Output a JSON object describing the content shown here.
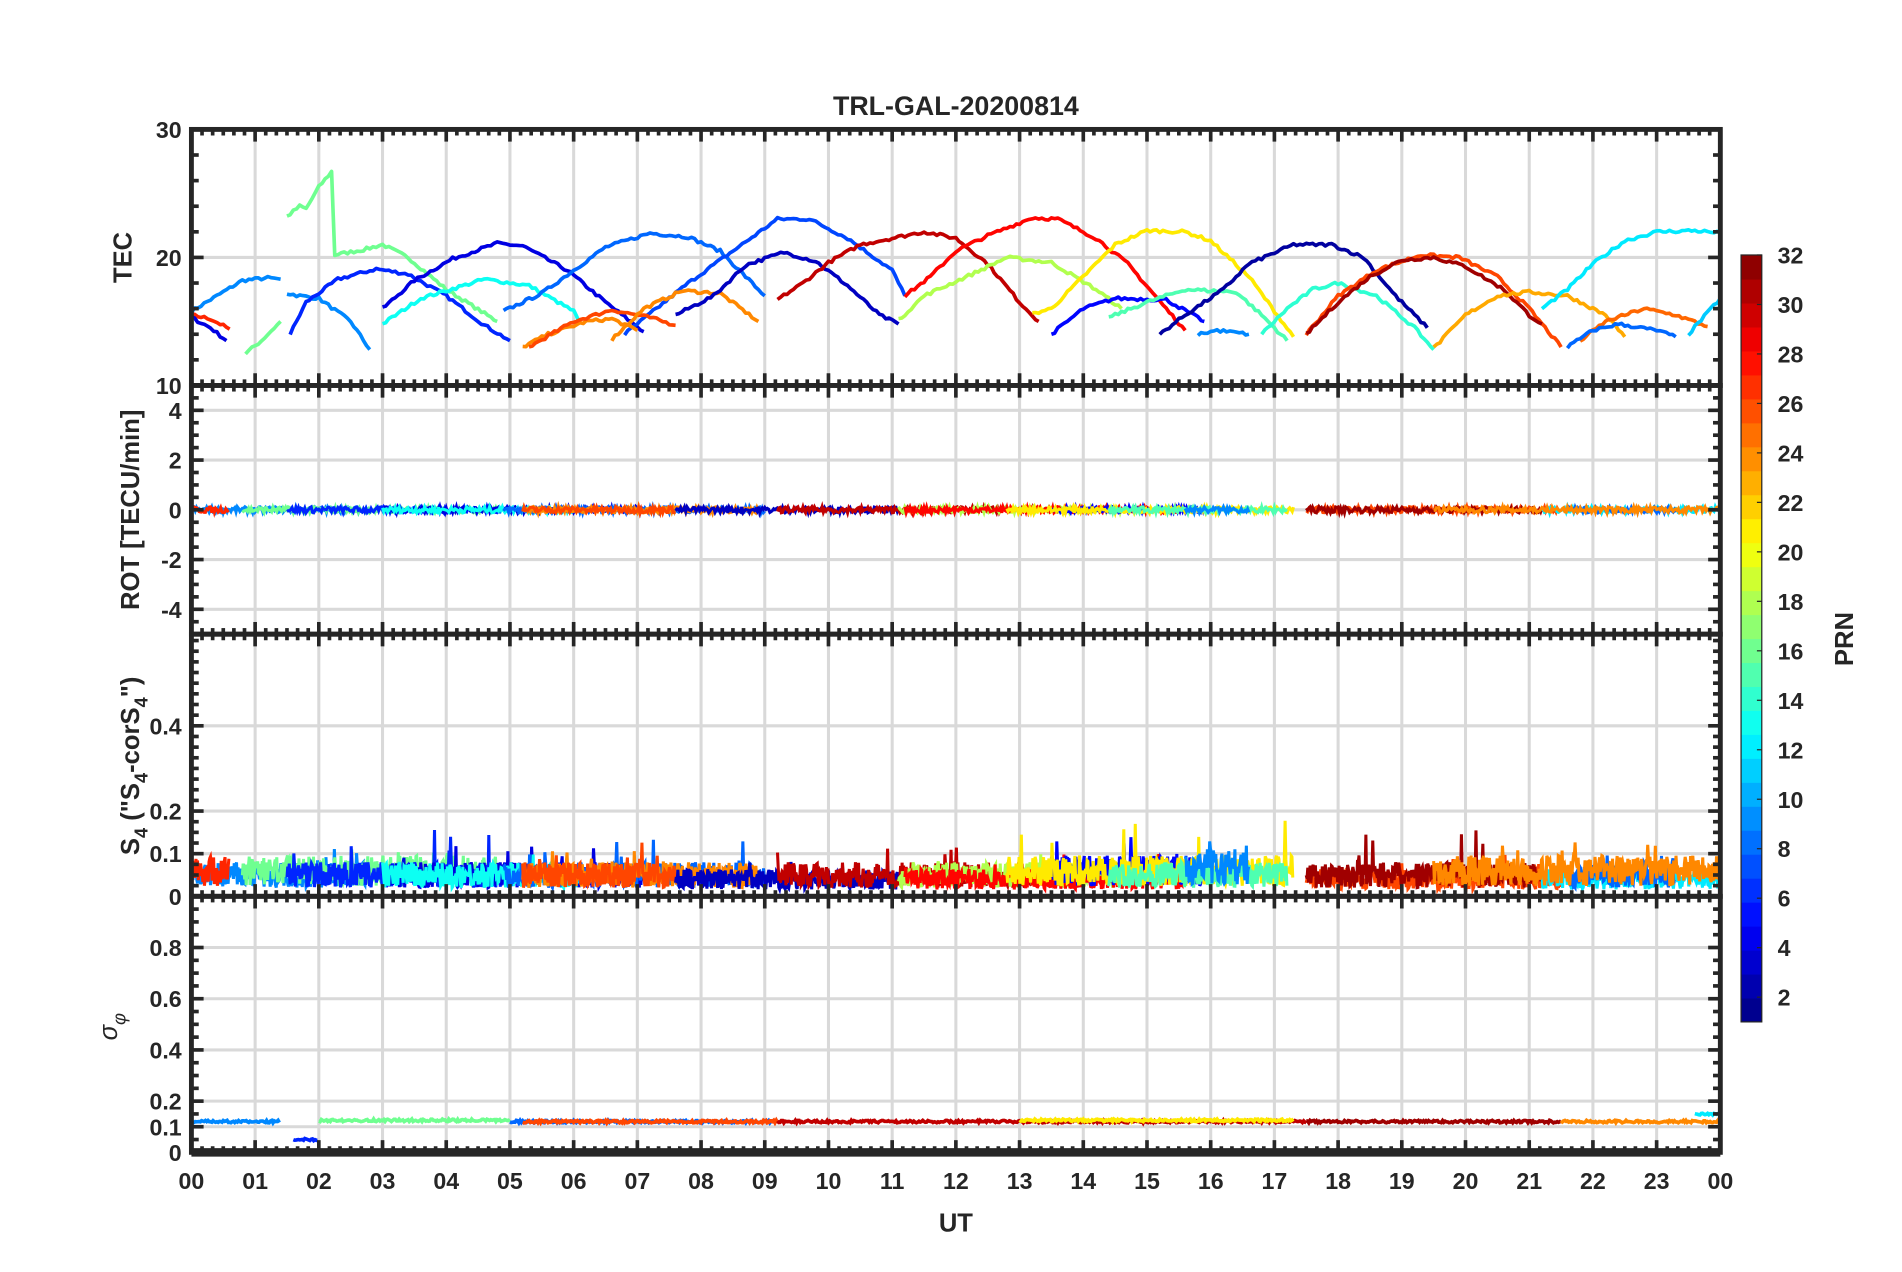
{
  "chart_data": {
    "type": "line",
    "title": "TRL-GAL-20200814",
    "xlabel": "UT",
    "xlim": [
      0,
      24
    ],
    "x_tick_labels": [
      "00",
      "01",
      "02",
      "03",
      "04",
      "05",
      "06",
      "07",
      "08",
      "09",
      "10",
      "11",
      "12",
      "13",
      "14",
      "15",
      "16",
      "17",
      "18",
      "19",
      "20",
      "21",
      "22",
      "23",
      "00"
    ],
    "grid": true,
    "colorbar": {
      "label": "PRN",
      "range": [
        1,
        32
      ],
      "levels": 32,
      "colormap": "jet",
      "location": "right",
      "ticks": [
        2,
        4,
        6,
        8,
        10,
        12,
        14,
        16,
        18,
        20,
        22,
        24,
        26,
        28,
        30,
        32
      ]
    },
    "panels": [
      {
        "id": "tec",
        "ylabel": "TEC",
        "ylim": [
          10,
          30
        ],
        "yticks": [
          10,
          20,
          30
        ],
        "yminor": 2
      },
      {
        "id": "rot",
        "ylabel": "ROT [TECU/min]",
        "ylim": [
          -5,
          5
        ],
        "yticks": [
          -4,
          -2,
          0,
          2,
          4
        ],
        "yminor": 0.5
      },
      {
        "id": "s4",
        "ylabel_main": "S",
        "ylabel_sub": "4",
        "ylabel_mid": " (\"S",
        "ylabel_sub2": "4",
        "ylabel_mid2": "-corS",
        "ylabel_sub3": "4",
        "ylabel_end": "\")",
        "ylim": [
          0,
          0.615
        ],
        "yticks": [
          0,
          0.1,
          0.2,
          0.4
        ],
        "yminor": 0.025
      },
      {
        "id": "sigma",
        "ylabel_main": "σ",
        "ylabel_sub": "φ",
        "ylim": [
          0,
          1
        ],
        "yticks": [
          0,
          0.1,
          0.2,
          0.4,
          0.6,
          0.8
        ],
        "yminor": 0.05
      }
    ],
    "tec_arcs": [
      {
        "prn": 9,
        "points": [
          [
            0,
            15.8
          ],
          [
            0.4,
            17
          ],
          [
            0.8,
            18.2
          ],
          [
            1.2,
            18.4
          ],
          [
            1.4,
            18.3
          ]
        ]
      },
      {
        "prn": 27,
        "points": [
          [
            0,
            15.5
          ],
          [
            0.3,
            15.2
          ],
          [
            0.6,
            14.4
          ]
        ]
      },
      {
        "prn": 4,
        "points": [
          [
            0,
            15.3
          ],
          [
            0.3,
            14.5
          ],
          [
            0.55,
            13.5
          ]
        ]
      },
      {
        "prn": 16,
        "points": [
          [
            0.85,
            12.5
          ],
          [
            1.1,
            13.5
          ],
          [
            1.4,
            15
          ]
        ]
      },
      {
        "prn": 16,
        "points": [
          [
            1.5,
            23.2
          ],
          [
            1.6,
            23.6
          ],
          [
            1.7,
            24
          ],
          [
            1.8,
            23.8
          ],
          [
            2,
            25.5
          ],
          [
            2.2,
            26.7
          ],
          [
            2.25,
            20.2
          ],
          [
            2.7,
            20.6
          ],
          [
            3,
            21
          ],
          [
            3.4,
            20
          ],
          [
            4,
            17.5
          ],
          [
            4.8,
            15
          ]
        ]
      },
      {
        "prn": 9,
        "points": [
          [
            1.5,
            17.2
          ],
          [
            1.7,
            17
          ],
          [
            2.0,
            16.8
          ],
          [
            2.5,
            15
          ],
          [
            2.8,
            12.8
          ]
        ]
      },
      {
        "prn": 6,
        "points": [
          [
            1.55,
            14
          ],
          [
            1.8,
            16.5
          ],
          [
            2.3,
            18.3
          ],
          [
            2.9,
            19.1
          ],
          [
            3.4,
            18.7
          ],
          [
            4.0,
            17
          ],
          [
            4.6,
            14.7
          ],
          [
            5.0,
            13.5
          ]
        ]
      },
      {
        "prn": 4,
        "points": [
          [
            3.0,
            16
          ],
          [
            3.5,
            18.2
          ],
          [
            4.1,
            19.9
          ],
          [
            4.8,
            21.1
          ],
          [
            5.2,
            20.9
          ],
          [
            5.9,
            19
          ],
          [
            6.5,
            16.5
          ],
          [
            7.1,
            14.2
          ]
        ]
      },
      {
        "prn": 13,
        "points": [
          [
            3.0,
            14.8
          ],
          [
            3.6,
            16.8
          ],
          [
            4.6,
            18.3
          ],
          [
            5.3,
            17.8
          ],
          [
            6.0,
            15.8
          ],
          [
            6.1,
            14.8
          ]
        ]
      },
      {
        "prn": 8,
        "points": [
          [
            4.9,
            15.8
          ],
          [
            5.5,
            17.2
          ],
          [
            6,
            19
          ],
          [
            6.5,
            20.8
          ],
          [
            7.2,
            21.9
          ],
          [
            7.8,
            21.6
          ],
          [
            8.3,
            20.5
          ],
          [
            8.7,
            18.5
          ],
          [
            9.0,
            17
          ]
        ]
      },
      {
        "prn": 7,
        "points": [
          [
            6.8,
            14
          ],
          [
            7.3,
            16
          ],
          [
            7.8,
            18
          ],
          [
            8.5,
            20.5
          ],
          [
            9.2,
            23
          ],
          [
            9.7,
            23
          ],
          [
            10.3,
            21.5
          ],
          [
            11.0,
            19
          ],
          [
            11.2,
            17
          ]
        ]
      },
      {
        "prn": 24,
        "points": [
          [
            5.2,
            13
          ],
          [
            5.6,
            14
          ],
          [
            6.2,
            15
          ],
          [
            6.6,
            15.2
          ],
          [
            7.0,
            14.3
          ]
        ]
      },
      {
        "prn": 26,
        "points": [
          [
            5.3,
            13
          ],
          [
            6,
            15
          ],
          [
            6.6,
            15.9
          ],
          [
            7.2,
            15.3
          ],
          [
            7.6,
            14.7
          ]
        ]
      },
      {
        "prn": 24,
        "points": [
          [
            6.6,
            13.6
          ],
          [
            7.1,
            16
          ],
          [
            7.7,
            17.4
          ],
          [
            8.3,
            17.2
          ],
          [
            8.9,
            15
          ]
        ]
      },
      {
        "prn": 3,
        "points": [
          [
            7.6,
            15.5
          ],
          [
            8.2,
            17
          ],
          [
            8.7,
            19.4
          ],
          [
            9.3,
            20.4
          ],
          [
            9.8,
            19.7
          ],
          [
            10.3,
            17.8
          ],
          [
            10.8,
            15.5
          ],
          [
            11.1,
            14.8
          ]
        ]
      },
      {
        "prn": 30,
        "points": [
          [
            9.2,
            16.7
          ],
          [
            9.6,
            18
          ],
          [
            10,
            19.6
          ],
          [
            10.5,
            21
          ],
          [
            11.0,
            21.5
          ],
          [
            11.5,
            22
          ],
          [
            12,
            21.5
          ],
          [
            12.5,
            19.5
          ],
          [
            13.0,
            16.5
          ],
          [
            13.3,
            15
          ]
        ]
      },
      {
        "prn": 28,
        "points": [
          [
            11.2,
            17
          ],
          [
            11.6,
            18.5
          ],
          [
            12,
            20.5
          ],
          [
            12.5,
            21.7
          ],
          [
            13.2,
            23.1
          ],
          [
            13.6,
            23
          ],
          [
            14.2,
            21.5
          ],
          [
            14.7,
            19.5
          ],
          [
            15.3,
            16
          ],
          [
            15.6,
            14.3
          ]
        ]
      },
      {
        "prn": 18,
        "points": [
          [
            11.1,
            15.1
          ],
          [
            11.5,
            17
          ],
          [
            12.3,
            18.8
          ],
          [
            12.8,
            20
          ],
          [
            13.5,
            19.6
          ],
          [
            14.2,
            17.5
          ],
          [
            14.6,
            16
          ]
        ]
      },
      {
        "prn": 21,
        "points": [
          [
            13.2,
            15.6
          ],
          [
            13.5,
            16
          ],
          [
            14,
            18.5
          ],
          [
            14.5,
            21
          ],
          [
            15,
            22.1
          ],
          [
            15.6,
            22
          ],
          [
            16,
            21.3
          ],
          [
            16.6,
            18.5
          ],
          [
            17.3,
            13.8
          ]
        ]
      },
      {
        "prn": 5,
        "points": [
          [
            13.5,
            14
          ],
          [
            14,
            16
          ],
          [
            14.5,
            16.8
          ],
          [
            15.3,
            16.7
          ],
          [
            15.9,
            15
          ]
        ]
      },
      {
        "prn": 15,
        "points": [
          [
            14.4,
            15.3
          ],
          [
            15,
            16.5
          ],
          [
            15.6,
            17.5
          ],
          [
            16.4,
            17.3
          ],
          [
            16.8,
            15.5
          ],
          [
            17.2,
            13.5
          ]
        ]
      },
      {
        "prn": 2,
        "points": [
          [
            15.2,
            14
          ],
          [
            15.6,
            15.5
          ],
          [
            16.2,
            17.5
          ],
          [
            16.6,
            19.5
          ],
          [
            17.3,
            21
          ],
          [
            17.9,
            21
          ],
          [
            18.4,
            20
          ],
          [
            18.9,
            17
          ],
          [
            19.4,
            14.5
          ]
        ]
      },
      {
        "prn": 9,
        "points": [
          [
            15.8,
            14
          ],
          [
            16.1,
            14.3
          ],
          [
            16.6,
            14
          ]
        ]
      },
      {
        "prn": 14,
        "points": [
          [
            16.8,
            14
          ],
          [
            17.2,
            16
          ],
          [
            17.6,
            17.5
          ],
          [
            18.0,
            18
          ],
          [
            18.6,
            17
          ],
          [
            19.2,
            14.5
          ],
          [
            19.5,
            12.8
          ]
        ]
      },
      {
        "prn": 26,
        "points": [
          [
            17.5,
            14
          ],
          [
            18,
            17
          ],
          [
            18.6,
            19
          ],
          [
            19.3,
            20.2
          ],
          [
            19.9,
            20
          ],
          [
            20.5,
            18.5
          ],
          [
            21.0,
            16
          ],
          [
            21.5,
            13
          ]
        ]
      },
      {
        "prn": 31,
        "points": [
          [
            17.5,
            14
          ],
          [
            18,
            16.5
          ],
          [
            18.5,
            18.5
          ],
          [
            19.0,
            19.8
          ],
          [
            19.5,
            20
          ],
          [
            20,
            19.3
          ],
          [
            20.6,
            17.5
          ],
          [
            21,
            15.5
          ],
          [
            21.2,
            14.8
          ]
        ]
      },
      {
        "prn": 23,
        "points": [
          [
            19.5,
            12.9
          ],
          [
            20,
            15.5
          ],
          [
            20.5,
            17
          ],
          [
            21,
            17.3
          ],
          [
            21.6,
            17
          ],
          [
            22.2,
            15.5
          ],
          [
            22.5,
            13.8
          ]
        ]
      },
      {
        "prn": 12,
        "points": [
          [
            21.2,
            16
          ],
          [
            21.6,
            17.5
          ],
          [
            22,
            19.5
          ],
          [
            22.5,
            21.3
          ],
          [
            23,
            22
          ],
          [
            23.6,
            22.1
          ],
          [
            24,
            21.9
          ]
        ]
      },
      {
        "prn": 25,
        "points": [
          [
            21.8,
            13.5
          ],
          [
            22.2,
            15
          ],
          [
            22.8,
            16
          ],
          [
            23.3,
            15.5
          ],
          [
            23.8,
            14.6
          ]
        ]
      },
      {
        "prn": 8,
        "points": [
          [
            21.6,
            13
          ],
          [
            22,
            14.3
          ],
          [
            22.4,
            14.8
          ],
          [
            23,
            14.3
          ],
          [
            23.3,
            13.8
          ]
        ]
      },
      {
        "prn": 11,
        "points": [
          [
            23.5,
            14
          ],
          [
            24,
            16.8
          ]
        ]
      }
    ],
    "rot_level": 0,
    "s4_segments": [
      {
        "prn": 9,
        "from": 0,
        "to": 2.8,
        "mean": 0.05,
        "max": 0.12
      },
      {
        "prn": 16,
        "from": 0.8,
        "to": 4.8,
        "mean": 0.06,
        "max": 0.11
      },
      {
        "prn": 27,
        "from": 0,
        "to": 0.6,
        "mean": 0.06,
        "max": 0.14
      },
      {
        "prn": 6,
        "from": 1.5,
        "to": 5,
        "mean": 0.05,
        "max": 0.16
      },
      {
        "prn": 4,
        "from": 3,
        "to": 7.1,
        "mean": 0.05,
        "max": 0.12
      },
      {
        "prn": 13,
        "from": 3,
        "to": 6.1,
        "mean": 0.05,
        "max": 0.1
      },
      {
        "prn": 8,
        "from": 4.9,
        "to": 9,
        "mean": 0.05,
        "max": 0.14
      },
      {
        "prn": 24,
        "from": 5.2,
        "to": 8.9,
        "mean": 0.05,
        "max": 0.12
      },
      {
        "prn": 26,
        "from": 5.2,
        "to": 7.6,
        "mean": 0.05,
        "max": 0.13
      },
      {
        "prn": 3,
        "from": 7.6,
        "to": 11.1,
        "mean": 0.04,
        "max": 0.1
      },
      {
        "prn": 30,
        "from": 9.2,
        "to": 13.3,
        "mean": 0.05,
        "max": 0.13
      },
      {
        "prn": 18,
        "from": 11.1,
        "to": 14.6,
        "mean": 0.05,
        "max": 0.1
      },
      {
        "prn": 28,
        "from": 11.2,
        "to": 15.6,
        "mean": 0.04,
        "max": 0.1
      },
      {
        "prn": 5,
        "from": 13.5,
        "to": 15.9,
        "mean": 0.06,
        "max": 0.15
      },
      {
        "prn": 21,
        "from": 12.8,
        "to": 17.3,
        "mean": 0.06,
        "max": 0.19
      },
      {
        "prn": 15,
        "from": 14.4,
        "to": 17.2,
        "mean": 0.05,
        "max": 0.12
      },
      {
        "prn": 9,
        "from": 15.6,
        "to": 16.6,
        "mean": 0.07,
        "max": 0.14
      },
      {
        "prn": 26,
        "from": 17.5,
        "to": 21.5,
        "mean": 0.04,
        "max": 0.1
      },
      {
        "prn": 31,
        "from": 17.5,
        "to": 21.2,
        "mean": 0.05,
        "max": 0.16
      },
      {
        "prn": 12,
        "from": 21.2,
        "to": 24,
        "mean": 0.04,
        "max": 0.08
      },
      {
        "prn": 8,
        "from": 21.6,
        "to": 23.3,
        "mean": 0.05,
        "max": 0.1
      },
      {
        "prn": 24,
        "from": 19.5,
        "to": 24,
        "mean": 0.06,
        "max": 0.13
      }
    ],
    "sigma_segments": [
      {
        "prn": 9,
        "from": 0,
        "to": 1.4,
        "level": 0.12
      },
      {
        "prn": 6,
        "from": 1.6,
        "to": 2.0,
        "level": 0.05
      },
      {
        "prn": 16,
        "from": 2.0,
        "to": 5.0,
        "level": 0.125
      },
      {
        "prn": 8,
        "from": 5.0,
        "to": 9.2,
        "level": 0.12
      },
      {
        "prn": 26,
        "from": 5.2,
        "to": 9.2,
        "level": 0.12
      },
      {
        "prn": 30,
        "from": 9.2,
        "to": 17.5,
        "level": 0.12
      },
      {
        "prn": 21,
        "from": 13.0,
        "to": 17.3,
        "level": 0.125
      },
      {
        "prn": 31,
        "from": 17.5,
        "to": 21.5,
        "level": 0.12
      },
      {
        "prn": 24,
        "from": 21.5,
        "to": 24,
        "level": 0.12
      },
      {
        "prn": 12,
        "from": 23.6,
        "to": 24,
        "level": 0.15
      }
    ]
  }
}
